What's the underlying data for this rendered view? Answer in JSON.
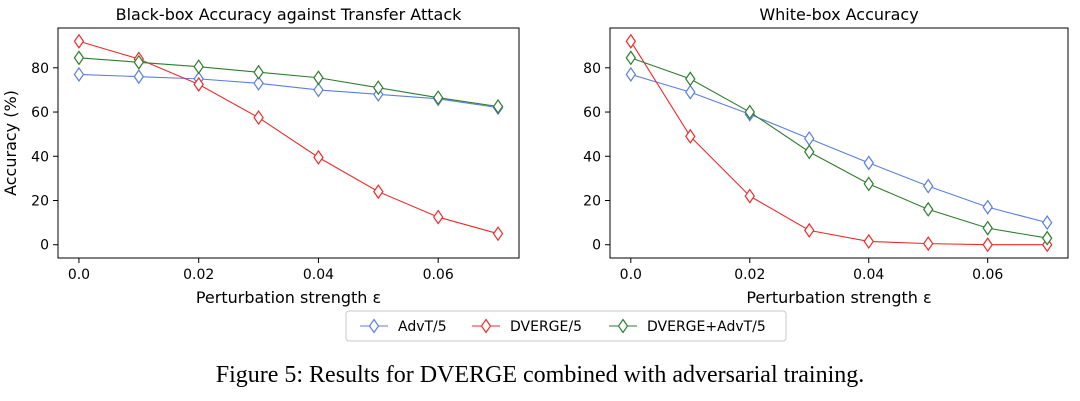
{
  "caption": "Figure 5: Results for DVERGE combined with adversarial training.",
  "legend": {
    "placement": "bottom-center",
    "entries": [
      "AdvT/5",
      "DVERGE/5",
      "DVERGE+AdvT/5"
    ]
  },
  "colors": {
    "AdvT/5": "#5b7fdb",
    "DVERGE/5": "#ee2b2b",
    "DVERGE+AdvT/5": "#2e7d2e"
  },
  "chart_data": [
    {
      "type": "line",
      "title": "Black-box Accuracy against Transfer Attack",
      "xlabel": "Perturbation strength ε",
      "ylabel": "Accuracy (%)",
      "xlim": [
        -0.0035,
        0.0735
      ],
      "ylim": [
        -6,
        98
      ],
      "xticks": [
        "0.0",
        "0.02",
        "0.04",
        "0.06"
      ],
      "yticks": [
        "0",
        "20",
        "40",
        "60",
        "80"
      ],
      "grid": false,
      "x": [
        0.0,
        0.01,
        0.02,
        0.03,
        0.04,
        0.05,
        0.06,
        0.07
      ],
      "series": [
        {
          "name": "AdvT/5",
          "values": [
            77,
            76,
            75,
            73,
            70,
            68,
            66,
            62
          ]
        },
        {
          "name": "DVERGE/5",
          "values": [
            92,
            84,
            72.5,
            57.5,
            39.5,
            24,
            12.5,
            5
          ]
        },
        {
          "name": "DVERGE+AdvT/5",
          "values": [
            84.5,
            82.5,
            80.5,
            78,
            75.5,
            71,
            66.5,
            62.5
          ]
        }
      ]
    },
    {
      "type": "line",
      "title": "White-box Accuracy",
      "xlabel": "Perturbation strength ε",
      "ylabel": "",
      "xlim": [
        -0.0035,
        0.0735
      ],
      "ylim": [
        -6,
        98
      ],
      "xticks": [
        "0.0",
        "0.02",
        "0.04",
        "0.06"
      ],
      "yticks": [
        "0",
        "20",
        "40",
        "60",
        "80"
      ],
      "grid": false,
      "x": [
        0.0,
        0.01,
        0.02,
        0.03,
        0.04,
        0.05,
        0.06,
        0.07
      ],
      "series": [
        {
          "name": "AdvT/5",
          "values": [
            77,
            69,
            59,
            48,
            37,
            26.5,
            17,
            10
          ]
        },
        {
          "name": "DVERGE/5",
          "values": [
            92,
            49,
            22,
            6.5,
            1.5,
            0.5,
            0,
            0
          ]
        },
        {
          "name": "DVERGE+AdvT/5",
          "values": [
            84.5,
            75,
            60,
            42,
            27.5,
            16,
            7.5,
            3
          ]
        }
      ]
    }
  ]
}
